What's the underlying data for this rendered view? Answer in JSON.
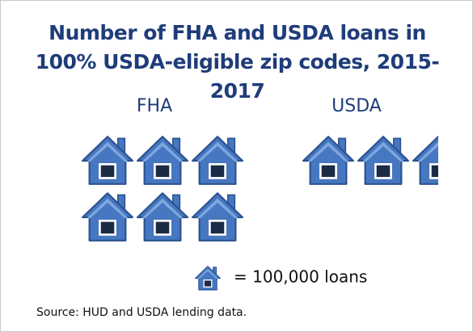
{
  "chart_data": {
    "type": "pictograph",
    "title": "Number of FHA and USDA loans in 100% USDA-eligible zip codes, 2015-2017",
    "categories": [
      "FHA",
      "USDA"
    ],
    "values": [
      600000,
      250000
    ],
    "unit": {
      "value": 100000,
      "label": "= 100,000 loans"
    },
    "color": "#4677c0",
    "source": "Source: HUD and USDA lending data."
  }
}
